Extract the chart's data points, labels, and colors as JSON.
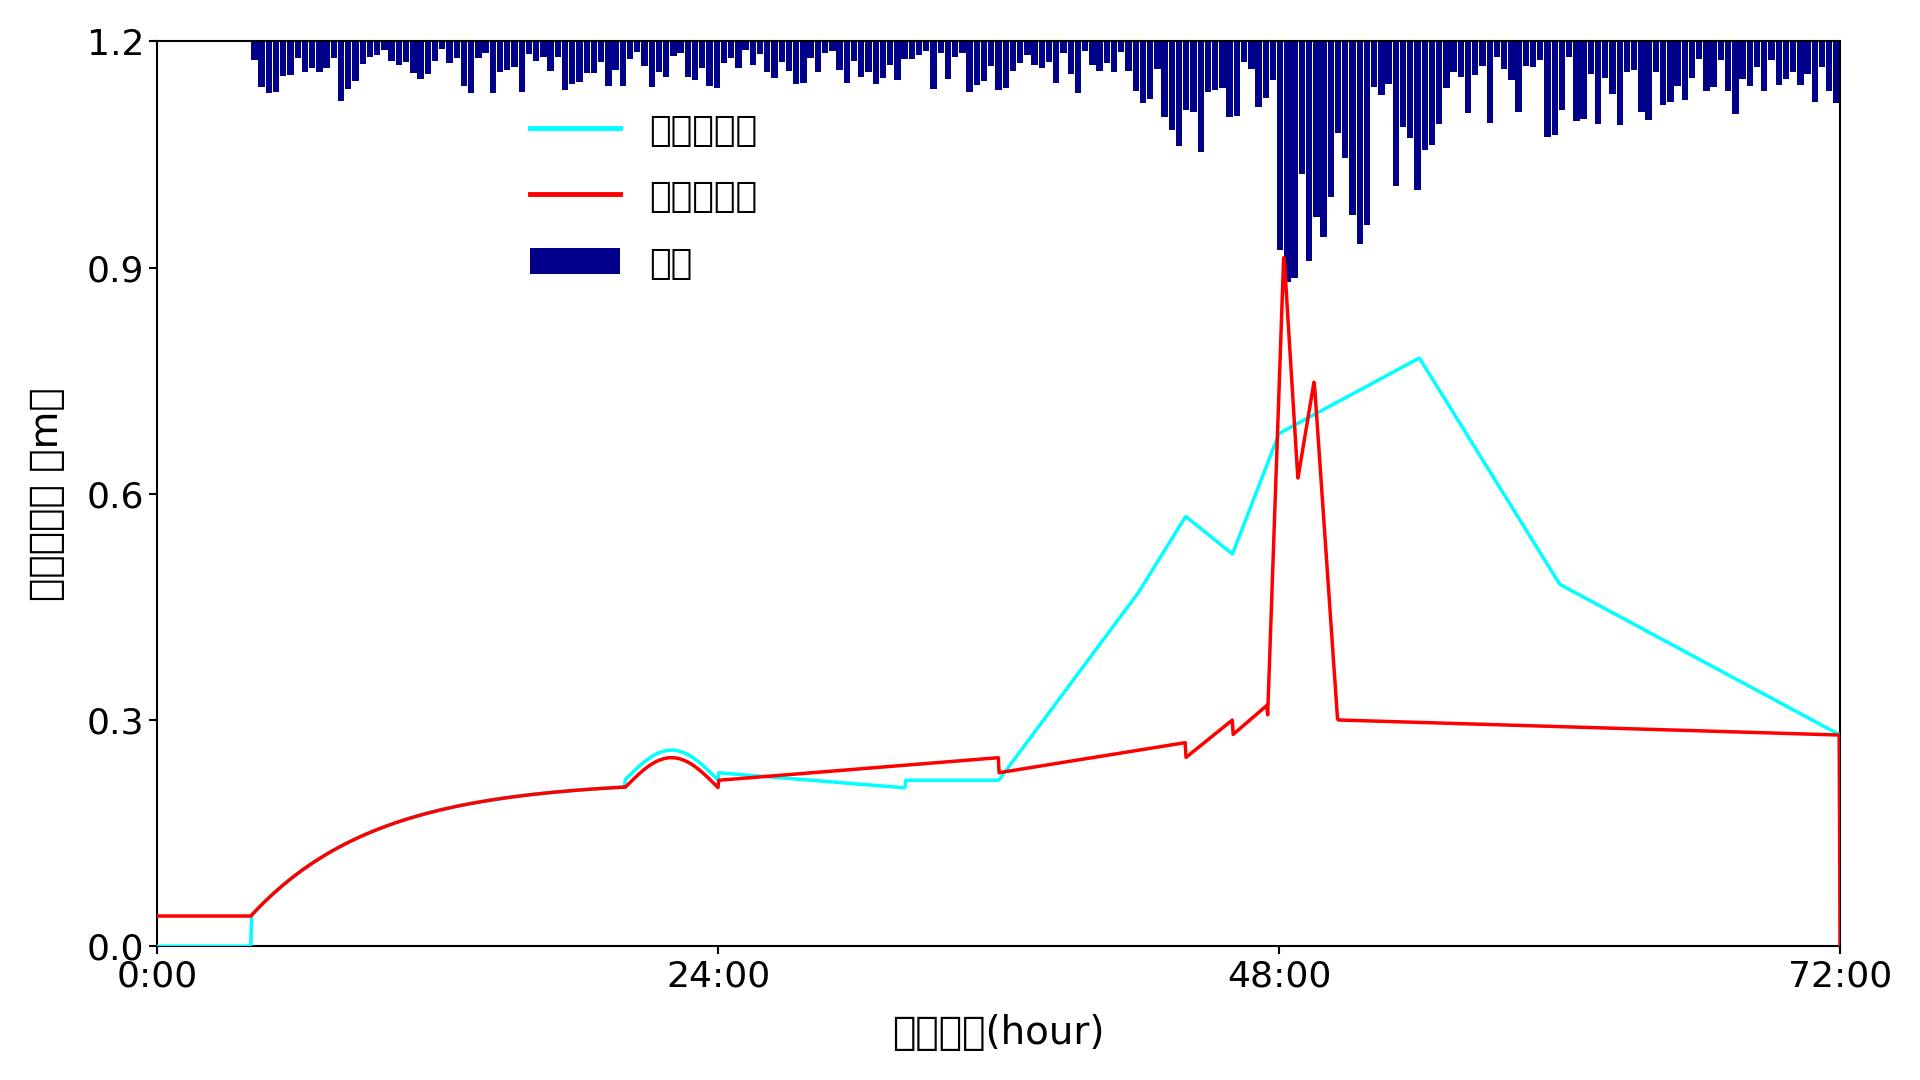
{
  "ylabel": "排水路水深 （m）",
  "xlabel": "経過時間(hour)",
  "ylim": [
    0.0,
    1.2
  ],
  "xlim": [
    0,
    72
  ],
  "yticks": [
    0.0,
    0.3,
    0.6,
    0.9,
    1.2
  ],
  "xtick_labels": [
    "0:00",
    "24:00",
    "48:00",
    "72:00"
  ],
  "xtick_positions": [
    0,
    24,
    48,
    72
  ],
  "legend_labels": [
    "通常の水田",
    "田んぼダム",
    "降雨"
  ],
  "line_cyan_color": "cyan",
  "line_red_color": "red",
  "bar_color": "#00008B",
  "background_color": "white",
  "figsize": [
    19.2,
    10.8
  ],
  "dpi": 100
}
